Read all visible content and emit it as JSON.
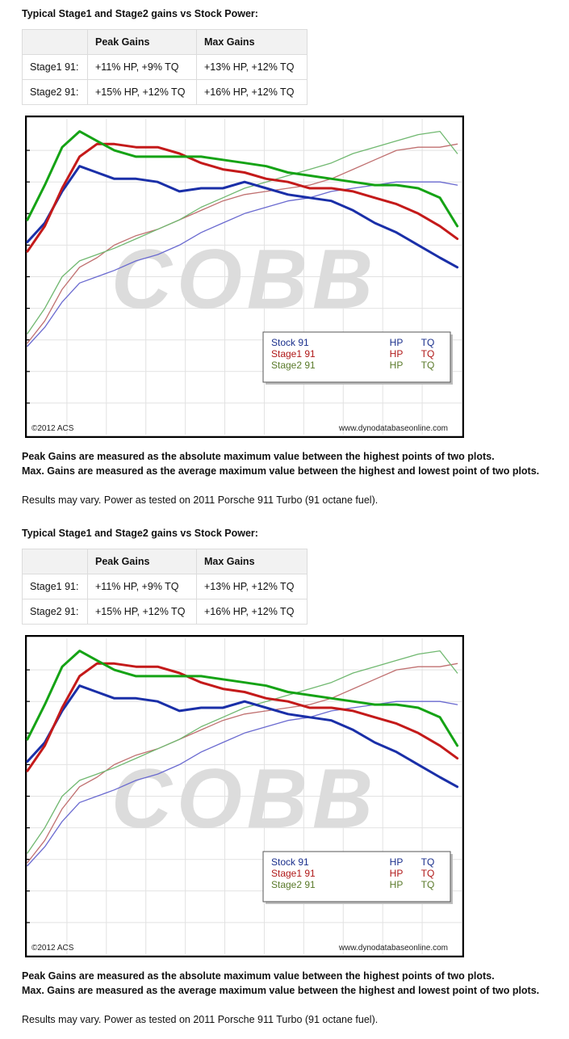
{
  "sections": [
    {
      "heading": "Typical Stage1 and Stage2 gains vs Stock Power:",
      "table": {
        "headers": [
          "",
          "Peak Gains",
          "Max Gains"
        ],
        "rows": [
          [
            "Stage1 91:",
            "+11% HP, +9% TQ",
            "+13% HP, +12% TQ"
          ],
          [
            "Stage2 91:",
            "+15% HP, +12% TQ",
            "+16% HP, +12% TQ"
          ]
        ]
      },
      "notes": [
        "Peak Gains are measured as the absolute maximum value between the highest points of two plots.",
        "Max. Gains are measured as the average maximum value between the highest and lowest point of two plots."
      ],
      "results": "Results may vary. Power as tested on 2011 Porsche 911 Turbo (91 octane fuel)."
    },
    {
      "heading": "Typical Stage1 and Stage2 gains vs Stock Power:",
      "table": {
        "headers": [
          "",
          "Peak Gains",
          "Max Gains"
        ],
        "rows": [
          [
            "Stage1 91:",
            "+11% HP, +9% TQ",
            "+13% HP, +12% TQ"
          ],
          [
            "Stage2 91:",
            "+15% HP, +12% TQ",
            "+16% HP, +12% TQ"
          ]
        ]
      },
      "notes": [
        "Peak Gains are measured as the absolute maximum value between the highest points of two plots.",
        "Max. Gains are measured as the average maximum value between the highest and lowest point of two plots."
      ],
      "results": "Results may vary. Power as tested on 2011 Porsche 911 Turbo (91 octane fuel)."
    }
  ],
  "chart_data": [
    {
      "type": "line",
      "watermark": "COBB",
      "copyright": "©2012 ACS",
      "source": "www.dynodatabaseonline.com",
      "legend_position": "bottom-right",
      "grid": true,
      "ylim": [
        0,
        100
      ],
      "xlim": [
        0,
        100
      ],
      "legend": [
        {
          "name": "Stock 91",
          "hp": "HP",
          "tq": "TQ",
          "color": "#1a2f8c"
        },
        {
          "name": "Stage1 91",
          "hp": "HP",
          "tq": "TQ",
          "color": "#b01818"
        },
        {
          "name": "Stage2 91",
          "hp": "HP",
          "tq": "TQ",
          "color": "#5a7a2a"
        }
      ],
      "series": [
        {
          "name": "Stock 91",
          "kind": "TQ",
          "color": "#1a2fa8",
          "width": 3,
          "x": [
            0,
            4,
            8,
            12,
            16,
            20,
            25,
            30,
            35,
            40,
            45,
            50,
            55,
            60,
            65,
            70,
            75,
            80,
            85,
            90,
            95,
            99
          ],
          "y": [
            61,
            67,
            77,
            85,
            83,
            81,
            81,
            80,
            77,
            78,
            78,
            80,
            78,
            76,
            75,
            74,
            71,
            67,
            64,
            60,
            56,
            53
          ]
        },
        {
          "name": "Stage1 91",
          "kind": "TQ",
          "color": "#c41a1a",
          "width": 3,
          "x": [
            0,
            4,
            8,
            12,
            16,
            20,
            25,
            30,
            35,
            40,
            45,
            50,
            55,
            60,
            65,
            70,
            75,
            80,
            85,
            90,
            95,
            99
          ],
          "y": [
            58,
            66,
            78,
            88,
            92,
            92,
            91,
            91,
            89,
            86,
            84,
            83,
            81,
            80,
            78,
            78,
            77,
            75,
            73,
            70,
            66,
            62
          ]
        },
        {
          "name": "Stage2 91",
          "kind": "TQ",
          "color": "#15a315",
          "width": 3,
          "x": [
            0,
            4,
            8,
            12,
            16,
            20,
            25,
            30,
            35,
            40,
            45,
            50,
            55,
            60,
            65,
            70,
            75,
            80,
            85,
            90,
            95,
            99
          ],
          "y": [
            68,
            79,
            91,
            96,
            93,
            90,
            88,
            88,
            88,
            88,
            87,
            86,
            85,
            83,
            82,
            81,
            80,
            79,
            79,
            78,
            75,
            66
          ]
        },
        {
          "name": "Stock 91",
          "kind": "HP",
          "color": "#6a6ad0",
          "width": 1.3,
          "x": [
            0,
            4,
            8,
            12,
            16,
            20,
            25,
            30,
            35,
            40,
            45,
            50,
            55,
            60,
            65,
            70,
            75,
            80,
            85,
            90,
            95,
            99
          ],
          "y": [
            28,
            34,
            42,
            48,
            50,
            52,
            55,
            57,
            60,
            64,
            67,
            70,
            72,
            74,
            75,
            77,
            78,
            79,
            80,
            80,
            80,
            79
          ]
        },
        {
          "name": "Stage1 91",
          "kind": "HP",
          "color": "#c07070",
          "width": 1.3,
          "x": [
            0,
            4,
            8,
            12,
            16,
            20,
            25,
            30,
            35,
            40,
            45,
            50,
            55,
            60,
            65,
            70,
            75,
            80,
            85,
            90,
            95,
            99
          ],
          "y": [
            29,
            36,
            46,
            53,
            56,
            60,
            63,
            65,
            68,
            71,
            74,
            76,
            77,
            78,
            79,
            81,
            84,
            87,
            90,
            91,
            91,
            92
          ]
        },
        {
          "name": "Stage2 91",
          "kind": "HP",
          "color": "#70b870",
          "width": 1.3,
          "x": [
            0,
            4,
            8,
            12,
            16,
            20,
            25,
            30,
            35,
            40,
            45,
            50,
            55,
            60,
            65,
            70,
            75,
            80,
            85,
            90,
            95,
            99
          ],
          "y": [
            32,
            40,
            50,
            55,
            57,
            59,
            62,
            65,
            68,
            72,
            75,
            78,
            80,
            82,
            84,
            86,
            89,
            91,
            93,
            95,
            96,
            89
          ]
        }
      ]
    },
    {
      "type": "line",
      "watermark": "COBB",
      "copyright": "©2012 ACS",
      "source": "www.dynodatabaseonline.com",
      "legend_position": "bottom-right",
      "grid": true,
      "ylim": [
        0,
        100
      ],
      "xlim": [
        0,
        100
      ],
      "legend": [
        {
          "name": "Stock 91",
          "hp": "HP",
          "tq": "TQ",
          "color": "#1a2f8c"
        },
        {
          "name": "Stage1 91",
          "hp": "HP",
          "tq": "TQ",
          "color": "#b01818"
        },
        {
          "name": "Stage2 91",
          "hp": "HP",
          "tq": "TQ",
          "color": "#5a7a2a"
        }
      ],
      "series": [
        {
          "name": "Stock 91",
          "kind": "TQ",
          "color": "#1a2fa8",
          "width": 3,
          "x": [
            0,
            4,
            8,
            12,
            16,
            20,
            25,
            30,
            35,
            40,
            45,
            50,
            55,
            60,
            65,
            70,
            75,
            80,
            85,
            90,
            95,
            99
          ],
          "y": [
            61,
            67,
            77,
            85,
            83,
            81,
            81,
            80,
            77,
            78,
            78,
            80,
            78,
            76,
            75,
            74,
            71,
            67,
            64,
            60,
            56,
            53
          ]
        },
        {
          "name": "Stage1 91",
          "kind": "TQ",
          "color": "#c41a1a",
          "width": 3,
          "x": [
            0,
            4,
            8,
            12,
            16,
            20,
            25,
            30,
            35,
            40,
            45,
            50,
            55,
            60,
            65,
            70,
            75,
            80,
            85,
            90,
            95,
            99
          ],
          "y": [
            58,
            66,
            78,
            88,
            92,
            92,
            91,
            91,
            89,
            86,
            84,
            83,
            81,
            80,
            78,
            78,
            77,
            75,
            73,
            70,
            66,
            62
          ]
        },
        {
          "name": "Stage2 91",
          "kind": "TQ",
          "color": "#15a315",
          "width": 3,
          "x": [
            0,
            4,
            8,
            12,
            16,
            20,
            25,
            30,
            35,
            40,
            45,
            50,
            55,
            60,
            65,
            70,
            75,
            80,
            85,
            90,
            95,
            99
          ],
          "y": [
            68,
            79,
            91,
            96,
            93,
            90,
            88,
            88,
            88,
            88,
            87,
            86,
            85,
            83,
            82,
            81,
            80,
            79,
            79,
            78,
            75,
            66
          ]
        },
        {
          "name": "Stock 91",
          "kind": "HP",
          "color": "#6a6ad0",
          "width": 1.3,
          "x": [
            0,
            4,
            8,
            12,
            16,
            20,
            25,
            30,
            35,
            40,
            45,
            50,
            55,
            60,
            65,
            70,
            75,
            80,
            85,
            90,
            95,
            99
          ],
          "y": [
            28,
            34,
            42,
            48,
            50,
            52,
            55,
            57,
            60,
            64,
            67,
            70,
            72,
            74,
            75,
            77,
            78,
            79,
            80,
            80,
            80,
            79
          ]
        },
        {
          "name": "Stage1 91",
          "kind": "HP",
          "color": "#c07070",
          "width": 1.3,
          "x": [
            0,
            4,
            8,
            12,
            16,
            20,
            25,
            30,
            35,
            40,
            45,
            50,
            55,
            60,
            65,
            70,
            75,
            80,
            85,
            90,
            95,
            99
          ],
          "y": [
            29,
            36,
            46,
            53,
            56,
            60,
            63,
            65,
            68,
            71,
            74,
            76,
            77,
            78,
            79,
            81,
            84,
            87,
            90,
            91,
            91,
            92
          ]
        },
        {
          "name": "Stage2 91",
          "kind": "HP",
          "color": "#70b870",
          "width": 1.3,
          "x": [
            0,
            4,
            8,
            12,
            16,
            20,
            25,
            30,
            35,
            40,
            45,
            50,
            55,
            60,
            65,
            70,
            75,
            80,
            85,
            90,
            95,
            99
          ],
          "y": [
            32,
            40,
            50,
            55,
            57,
            59,
            62,
            65,
            68,
            72,
            75,
            78,
            80,
            82,
            84,
            86,
            89,
            91,
            93,
            95,
            96,
            89
          ]
        }
      ]
    }
  ]
}
